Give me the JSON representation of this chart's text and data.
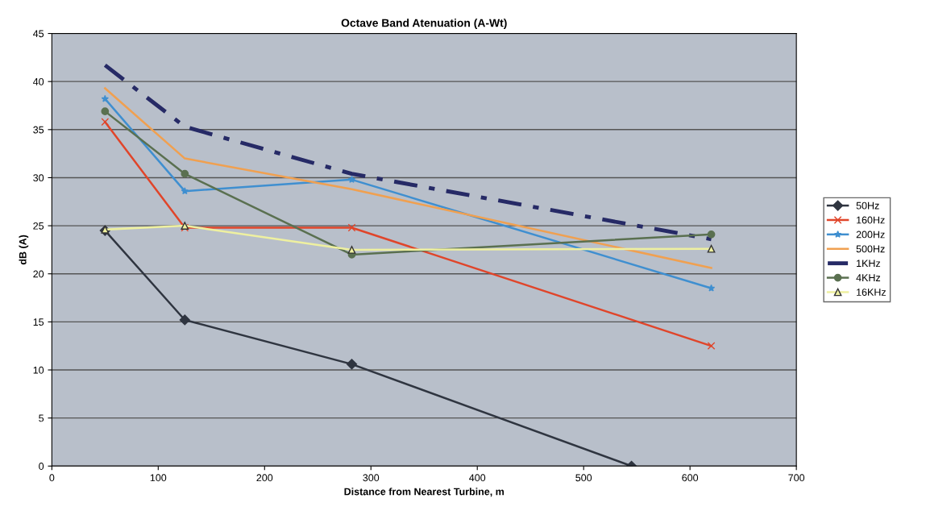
{
  "chart_data": {
    "type": "line",
    "title": "Octave Band Atenuation (A-Wt)",
    "xlabel": "Distance from Nearest Turbine, m",
    "ylabel": "dB (A)",
    "x": [
      50,
      125,
      282,
      620
    ],
    "series": [
      {
        "name": "50Hz",
        "color": "#2f3540",
        "marker": "diamond",
        "x": [
          50,
          125,
          282,
          545
        ],
        "values": [
          24.5,
          15.2,
          10.6,
          0
        ]
      },
      {
        "name": "160Hz",
        "color": "#e0452a",
        "marker": "cross",
        "values": [
          35.8,
          24.8,
          24.8,
          12.5
        ]
      },
      {
        "name": "200Hz",
        "color": "#3f8fd0",
        "marker": "star",
        "values": [
          38.2,
          28.6,
          29.8,
          18.5
        ]
      },
      {
        "name": "500Hz",
        "color": "#f0a050",
        "marker": "none",
        "values": [
          39.3,
          32.0,
          28.8,
          20.6
        ]
      },
      {
        "name": "1KHz",
        "color": "#262a66",
        "marker": "none",
        "line_style": "dashed",
        "values": [
          41.7,
          35.3,
          30.4,
          23.6
        ]
      },
      {
        "name": "4KHz",
        "color": "#5a7050",
        "marker": "circle",
        "values": [
          36.9,
          30.4,
          22.0,
          24.1
        ]
      },
      {
        "name": "16KHz",
        "color": "#eef0a0",
        "marker": "triangle",
        "values": [
          24.6,
          25.0,
          22.5,
          22.6
        ]
      }
    ],
    "xlim": [
      0,
      700
    ],
    "xticks": [
      0,
      100,
      200,
      300,
      400,
      500,
      600,
      700
    ],
    "ylim": [
      0,
      45
    ],
    "yticks": [
      0,
      5,
      10,
      15,
      20,
      25,
      30,
      35,
      40,
      45
    ],
    "grid": "y",
    "legend": "right"
  }
}
